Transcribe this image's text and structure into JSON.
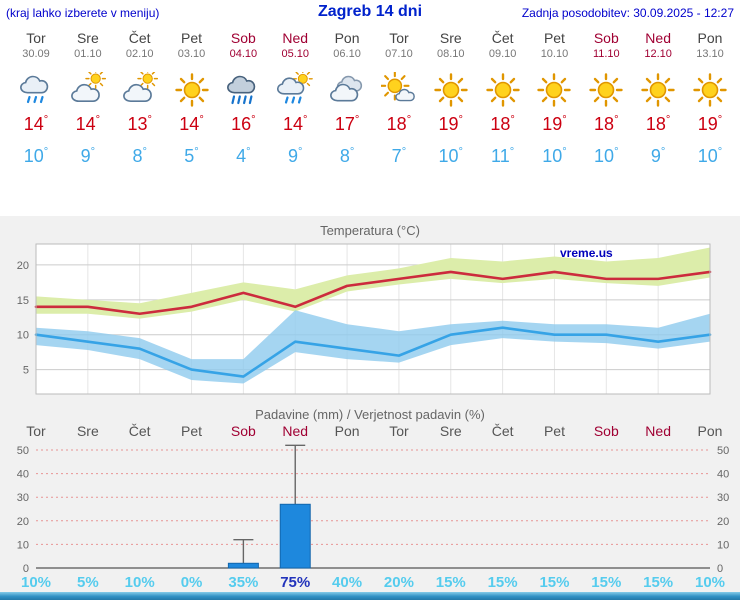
{
  "header": {
    "location_hint": "(kraj lahko izberete v meniju)",
    "title": "Zagreb 14 dni",
    "last_update": "Zadnja posodobitev: 30.09.2025 - 12:27"
  },
  "labels": {
    "degree": "°"
  },
  "days": [
    {
      "name": "Tor",
      "date": "30.09",
      "weekend": false,
      "icon": "rain",
      "high": "14",
      "low": "10"
    },
    {
      "name": "Sre",
      "date": "01.10",
      "weekend": false,
      "icon": "partly-cloudy",
      "high": "14",
      "low": "9"
    },
    {
      "name": "Čet",
      "date": "02.10",
      "weekend": false,
      "icon": "partly-cloudy",
      "high": "13",
      "low": "8"
    },
    {
      "name": "Pet",
      "date": "03.10",
      "weekend": false,
      "icon": "sunny",
      "high": "14",
      "low": "5"
    },
    {
      "name": "Sob",
      "date": "04.10",
      "weekend": true,
      "icon": "heavy-rain",
      "high": "16",
      "low": "4"
    },
    {
      "name": "Ned",
      "date": "05.10",
      "weekend": true,
      "icon": "showers",
      "high": "14",
      "low": "9"
    },
    {
      "name": "Pon",
      "date": "06.10",
      "weekend": false,
      "icon": "cloudy",
      "high": "17",
      "low": "8"
    },
    {
      "name": "Tor",
      "date": "07.10",
      "weekend": false,
      "icon": "mostly-sunny",
      "high": "18",
      "low": "7"
    },
    {
      "name": "Sre",
      "date": "08.10",
      "weekend": false,
      "icon": "sunny",
      "high": "19",
      "low": "10"
    },
    {
      "name": "Čet",
      "date": "09.10",
      "weekend": false,
      "icon": "sunny",
      "high": "18",
      "low": "11"
    },
    {
      "name": "Pet",
      "date": "10.10",
      "weekend": false,
      "icon": "sunny",
      "high": "19",
      "low": "10"
    },
    {
      "name": "Sob",
      "date": "11.10",
      "weekend": true,
      "icon": "sunny",
      "high": "18",
      "low": "10"
    },
    {
      "name": "Ned",
      "date": "12.10",
      "weekend": true,
      "icon": "sunny",
      "high": "18",
      "low": "9"
    },
    {
      "name": "Pon",
      "date": "13.10",
      "weekend": false,
      "icon": "sunny",
      "high": "19",
      "low": "10"
    }
  ],
  "chart_data": [
    {
      "type": "line",
      "title": "Temperatura (°C)",
      "watermark": "vreme.us",
      "categories": [
        "Tor",
        "Sre",
        "Čet",
        "Pet",
        "Sob",
        "Ned",
        "Pon",
        "Tor",
        "Sre",
        "Čet",
        "Pet",
        "Sob",
        "Ned",
        "Pon"
      ],
      "ylim": [
        1.5,
        23
      ],
      "y_ticks": [
        5,
        10,
        15,
        20
      ],
      "grid": true,
      "legend": false,
      "series": [
        {
          "name": "max",
          "color": "#cc2b3d",
          "values": [
            14,
            14,
            13,
            14,
            16,
            14,
            17,
            18,
            19,
            18,
            19,
            18,
            18,
            19
          ]
        },
        {
          "name": "min",
          "color": "#36a3e6",
          "values": [
            10,
            9,
            8,
            5,
            4,
            9,
            8,
            7,
            10,
            11,
            10,
            10,
            9,
            10
          ]
        }
      ],
      "bands": [
        {
          "name": "max-range",
          "color": "#dcedaa",
          "opacity": 1,
          "upper": [
            15.5,
            15,
            14.5,
            16,
            17.5,
            16.5,
            18.5,
            19.5,
            21,
            20.5,
            21.2,
            20.5,
            21,
            22.5
          ],
          "lower": [
            13,
            13,
            12.3,
            13.3,
            15,
            13.3,
            16.2,
            17.2,
            18,
            17.4,
            18,
            17.4,
            17,
            18.2
          ]
        },
        {
          "name": "min-range",
          "color": "#8ecbed",
          "opacity": 0.8,
          "upper": [
            11,
            10.5,
            9.5,
            6.5,
            6.5,
            13.5,
            11.5,
            10.5,
            11.5,
            12,
            11.5,
            11.5,
            11,
            13
          ],
          "lower": [
            8.5,
            7.8,
            6.5,
            3.5,
            3,
            7.5,
            6.5,
            6,
            8.5,
            9.5,
            9,
            8.8,
            8,
            9
          ]
        }
      ]
    },
    {
      "type": "bar",
      "title": "Padavine (mm) / Verjetnost padavin (%)",
      "categories": [
        "Tor",
        "Sre",
        "Čet",
        "Pet",
        "Sob",
        "Ned",
        "Pon",
        "Tor",
        "Sre",
        "Čet",
        "Pet",
        "Sob",
        "Ned",
        "Pon"
      ],
      "ylim": [
        0,
        53
      ],
      "y_ticks": [
        0,
        10,
        20,
        30,
        40,
        50
      ],
      "bar_color": "#1e88dd",
      "values_mm": [
        0,
        0,
        0,
        0,
        2,
        27,
        0,
        0,
        0,
        0,
        0,
        0,
        0,
        0
      ],
      "whisker_max_mm": [
        0,
        0,
        0,
        0,
        12,
        52,
        0,
        0,
        0,
        0,
        0,
        0,
        0,
        0
      ],
      "probability_pct": [
        10,
        5,
        10,
        0,
        35,
        75,
        40,
        20,
        15,
        15,
        15,
        15,
        15,
        10
      ],
      "emphasis_index": 5
    }
  ],
  "colors": {
    "accent_blue": "#0000cc",
    "weekend_red": "#a00033",
    "temp_high": "#cc0011",
    "temp_low": "#3fa9e8",
    "bar_fill": "#1e88dd",
    "probability": "#55ccee",
    "probability_emphasis": "#2233bb"
  }
}
